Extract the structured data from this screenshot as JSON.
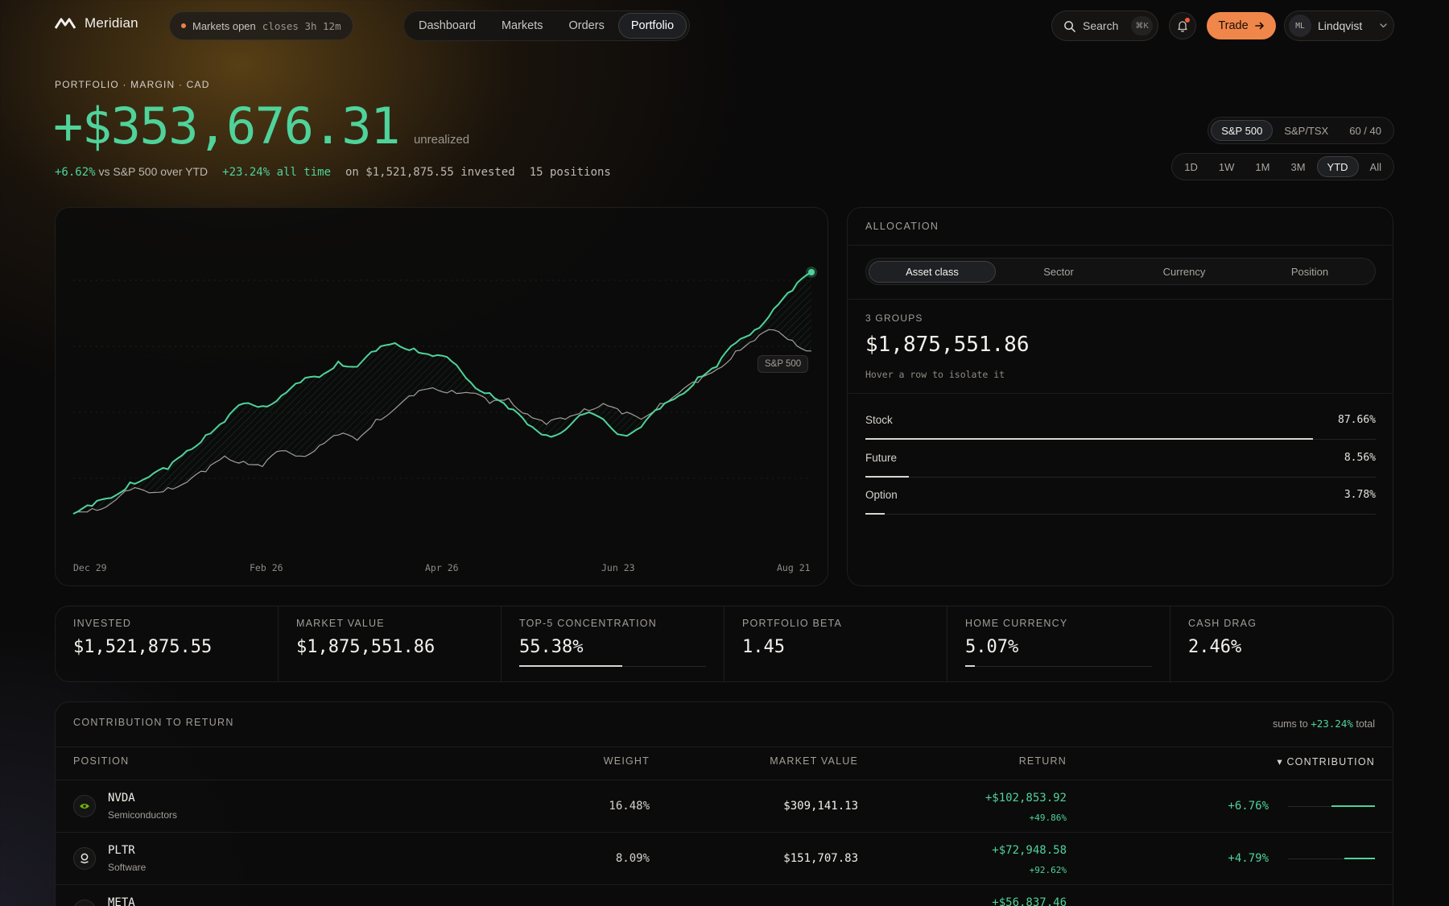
{
  "nav": {
    "brand": "Meridian",
    "market_status": "Markets open",
    "market_close": "closes 3h 12m",
    "tabs": [
      "Dashboard",
      "Markets",
      "Orders",
      "Portfolio"
    ],
    "active_tab": "Portfolio",
    "search_label": "Search",
    "search_shortcut": "⌘K",
    "trade_label": "Trade",
    "user_initials": "ML",
    "user_name": "Lindqvist",
    "accent_color": "#f0864a"
  },
  "hero": {
    "eyebrow": "PORTFOLIO · MARGIN · CAD",
    "value": "+$353,676.31",
    "value_caption": "unrealized",
    "vs_benchmark_pct": "+6.62%",
    "vs_benchmark_text": "vs S&P 500 over YTD",
    "all_time": "+23.24% all time",
    "invested_text": "on $1,521,875.55 invested",
    "positions_text": "15 positions",
    "benchmarks": [
      "S&P 500",
      "S&P/TSX",
      "60 / 40"
    ],
    "active_benchmark": "S&P 500",
    "ranges": [
      "1D",
      "1W",
      "1M",
      "3M",
      "YTD",
      "All"
    ],
    "active_range": "YTD"
  },
  "chart": {
    "benchmark_tag": "S&P 500",
    "x_ticks": [
      "Dec 29",
      "Feb 26",
      "Apr 26",
      "Jun 23",
      "Aug 21"
    ]
  },
  "chart_data": {
    "type": "line",
    "title": "",
    "x_ticks": [
      "Dec 29",
      "Feb 26",
      "Apr 26",
      "Jun 23",
      "Aug 21"
    ],
    "series": [
      {
        "name": "",
        "color": "#4fd39a",
        "values": [
          0,
          3,
          6,
          12,
          14,
          17,
          24,
          30,
          35,
          42,
          41,
          45,
          50,
          52,
          58,
          56,
          62,
          65,
          63,
          60,
          58,
          50,
          46,
          40,
          34,
          30,
          32,
          38,
          36,
          30,
          33,
          40,
          45,
          52,
          56,
          65,
          70,
          78,
          85,
          92
        ]
      },
      {
        "name": "S&P 500",
        "color": "#c8c4be",
        "values": [
          0,
          2,
          4,
          9,
          8,
          10,
          12,
          16,
          22,
          20,
          18,
          24,
          22,
          26,
          30,
          28,
          36,
          40,
          45,
          48,
          47,
          46,
          42,
          44,
          38,
          34,
          36,
          40,
          42,
          38,
          36,
          42,
          46,
          50,
          55,
          62,
          66,
          70,
          66,
          62
        ]
      }
    ]
  },
  "allocation": {
    "title": "ALLOCATION",
    "tabs": [
      "Asset class",
      "Sector",
      "Currency",
      "Position"
    ],
    "active_tab": "Asset class",
    "groups_label": "3 GROUPS",
    "total": "$1,875,551.86",
    "hint": "Hover a row to isolate it",
    "rows": [
      {
        "name": "Stock",
        "pct_label": "87.66%",
        "pct": 87.66
      },
      {
        "name": "Future",
        "pct_label": "8.56%",
        "pct": 8.56
      },
      {
        "name": "Option",
        "pct_label": "3.78%",
        "pct": 3.78
      }
    ]
  },
  "stats": [
    {
      "label": "INVESTED",
      "value": "$1,521,875.55"
    },
    {
      "label": "MARKET VALUE",
      "value": "$1,875,551.86"
    },
    {
      "label": "TOP-5 CONCENTRATION",
      "value": "55.38%",
      "bar": 55.38
    },
    {
      "label": "PORTFOLIO BETA",
      "value": "1.45"
    },
    {
      "label": "HOME CURRENCY",
      "value": "5.07%",
      "bar": 5.07
    },
    {
      "label": "CASH DRAG",
      "value": "2.46%"
    }
  ],
  "contribution": {
    "title": "CONTRIBUTION TO RETURN",
    "sums_prefix": "sums to",
    "sums_value": "+23.24%",
    "sums_suffix": "total",
    "columns": {
      "position": "POSITION",
      "weight": "WEIGHT",
      "market_value": "MARKET VALUE",
      "return": "RETURN",
      "contribution": "▾ CONTRIBUTION"
    },
    "rows": [
      {
        "symbol": "NVDA",
        "sector": "Semiconductors",
        "weight": "16.48%",
        "market_value": "$309,141.13",
        "return": "+$102,853.92",
        "return_pct": "+49.86%",
        "contribution": "+6.76%",
        "contrib_pct": 6.76
      },
      {
        "symbol": "PLTR",
        "sector": "Software",
        "weight": "8.09%",
        "market_value": "$151,707.83",
        "return": "+$72,948.58",
        "return_pct": "+92.62%",
        "contribution": "+4.79%",
        "contrib_pct": 4.79
      },
      {
        "symbol": "META",
        "sector": "",
        "weight": "",
        "market_value": "",
        "return": "+$56,837.46",
        "return_pct": "",
        "contribution": "",
        "contrib_pct": 0
      }
    ]
  }
}
